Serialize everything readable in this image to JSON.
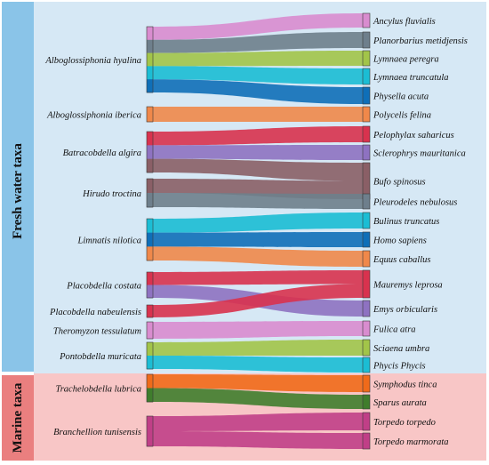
{
  "groups": [
    {
      "label": "Fresh water taxa",
      "bg": "#d6e8f5",
      "bar": "#8ac4e8"
    },
    {
      "label": "Marine taxa",
      "bg": "#f8c6c6",
      "bar": "#ea7f7f"
    }
  ],
  "sources": [
    {
      "name": "Alboglossiphonia hyalina",
      "group": 0
    },
    {
      "name": "Alboglossiphonia iberica",
      "group": 0
    },
    {
      "name": "Batracobdella algira",
      "group": 0
    },
    {
      "name": "Hirudo troctina",
      "group": 0
    },
    {
      "name": "Limnatis nilotica",
      "group": 0
    },
    {
      "name": "Placobdella costata",
      "group": 0
    },
    {
      "name": "Placobdella nabeulensis",
      "group": 0
    },
    {
      "name": "Theromyzon tessulatum",
      "group": 0
    },
    {
      "name": "Pontobdella muricata",
      "group": 0
    },
    {
      "name": "Trachelobdella lubrica",
      "group": 1
    },
    {
      "name": "Branchellion tunisensis",
      "group": 1
    }
  ],
  "targets": [
    {
      "name": "Ancylus fluvialis",
      "color": "#d98ccf"
    },
    {
      "name": "Planorbarius metidjensis",
      "color": "#6e7f8c"
    },
    {
      "name": "Lymnaea peregra",
      "color": "#a2c449"
    },
    {
      "name": "Lymnaea truncatula",
      "color": "#1bbdd4"
    },
    {
      "name": "Physella acuta",
      "color": "#0f6fb8"
    },
    {
      "name": "Polycelis felina",
      "color": "#f0884a"
    },
    {
      "name": "Pelophylax saharicus",
      "color": "#d8324e"
    },
    {
      "name": "Sclerophrys mauritanica",
      "color": "#8e72c1"
    },
    {
      "name": "Bufo spinosus",
      "color": "#8a5f66"
    },
    {
      "name": "Pleurodeles nebulosus",
      "color": "#6e7f8c"
    },
    {
      "name": "Bulinus truncatus",
      "color": "#1bbdd4"
    },
    {
      "name": "Homo sapiens",
      "color": "#0f6fb8"
    },
    {
      "name": "Equus caballus",
      "color": "#f0884a"
    },
    {
      "name": "Mauremys leprosa",
      "color": "#d8324e"
    },
    {
      "name": "Emys orbicularis",
      "color": "#8e72c1"
    },
    {
      "name": "Fulica atra",
      "color": "#d98ccf"
    },
    {
      "name": "Sciaena umbra",
      "color": "#a2c449"
    },
    {
      "name": "Phycis Phycis",
      "color": "#1bbdd4"
    },
    {
      "name": "Symphodus tinca",
      "color": "#ef6a1a"
    },
    {
      "name": "Sparus aurata",
      "color": "#3f7d2c"
    },
    {
      "name": "Torpedo torpedo",
      "color": "#c03f87"
    },
    {
      "name": "Torpedo marmorata",
      "color": "#c03f87"
    }
  ],
  "links": [
    {
      "source": 0,
      "target": 0
    },
    {
      "source": 0,
      "target": 1
    },
    {
      "source": 0,
      "target": 2
    },
    {
      "source": 0,
      "target": 3
    },
    {
      "source": 0,
      "target": 4
    },
    {
      "source": 1,
      "target": 5
    },
    {
      "source": 2,
      "target": 6
    },
    {
      "source": 2,
      "target": 7
    },
    {
      "source": 2,
      "target": 8
    },
    {
      "source": 3,
      "target": 8
    },
    {
      "source": 3,
      "target": 9
    },
    {
      "source": 4,
      "target": 10
    },
    {
      "source": 4,
      "target": 11
    },
    {
      "source": 4,
      "target": 12
    },
    {
      "source": 5,
      "target": 13
    },
    {
      "source": 5,
      "target": 14
    },
    {
      "source": 6,
      "target": 13
    },
    {
      "source": 7,
      "target": 15
    },
    {
      "source": 8,
      "target": 16
    },
    {
      "source": 8,
      "target": 17
    },
    {
      "source": 9,
      "target": 18
    },
    {
      "source": 9,
      "target": 19
    },
    {
      "source": 10,
      "target": 20
    },
    {
      "source": 10,
      "target": 21
    }
  ]
}
